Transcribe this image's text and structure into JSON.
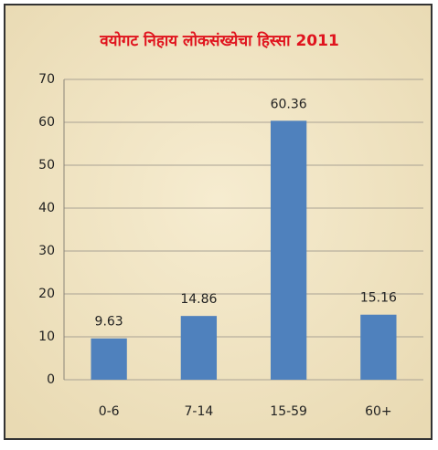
{
  "chart_data": {
    "type": "bar",
    "title": "वयोगट निहाय लोकसंख्येचा हिस्सा 2011",
    "categories": [
      "0-6",
      "7-14",
      "15-59",
      "60+"
    ],
    "values": [
      9.63,
      14.86,
      60.36,
      15.16
    ],
    "color": "#4f81bd",
    "ylim": [
      0,
      70
    ],
    "yticks": [
      0,
      10,
      20,
      30,
      40,
      50,
      60,
      70
    ],
    "grid": true
  }
}
